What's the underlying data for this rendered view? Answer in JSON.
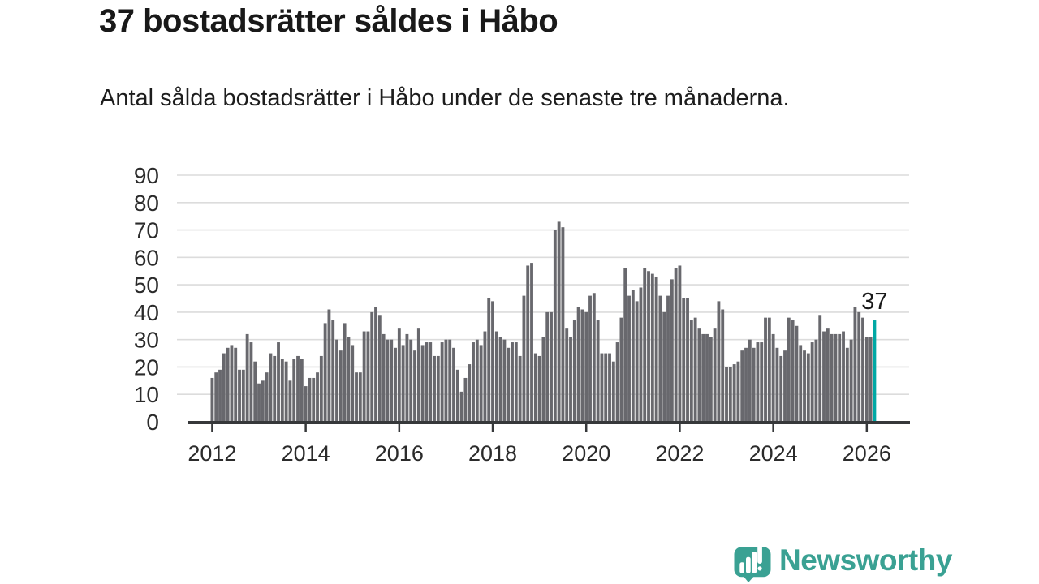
{
  "header": {
    "title": "37 bostadsrätter såldes i Håbo",
    "subtitle": "Antal sålda bostadsrätter i Håbo under de senaste tre månaderna."
  },
  "chart_data": {
    "type": "bar",
    "title": "37 bostadsrätter såldes i Håbo",
    "xlabel": "",
    "ylabel": "",
    "x_monthly_start": "2012-01",
    "x_monthly_end": "2026-03",
    "values": [
      16,
      18,
      19,
      25,
      27,
      28,
      27,
      19,
      19,
      32,
      29,
      22,
      14,
      15,
      18,
      25,
      24,
      29,
      23,
      22,
      15,
      23,
      24,
      23,
      13,
      16,
      16,
      18,
      24,
      36,
      41,
      37,
      30,
      26,
      36,
      31,
      28,
      18,
      18,
      33,
      33,
      40,
      42,
      39,
      32,
      30,
      30,
      27,
      34,
      28,
      32,
      30,
      26,
      34,
      28,
      29,
      29,
      24,
      24,
      29,
      30,
      30,
      27,
      19,
      11,
      16,
      21,
      29,
      30,
      28,
      33,
      45,
      44,
      33,
      31,
      30,
      27,
      29,
      29,
      24,
      46,
      57,
      58,
      25,
      24,
      31,
      40,
      40,
      70,
      73,
      71,
      34,
      31,
      37,
      42,
      41,
      40,
      46,
      47,
      37,
      25,
      25,
      25,
      22,
      29,
      38,
      56,
      46,
      48,
      44,
      49,
      56,
      55,
      54,
      53,
      46,
      40,
      46,
      52,
      56,
      57,
      45,
      45,
      37,
      38,
      34,
      32,
      32,
      31,
      34,
      44,
      41,
      20,
      20,
      21,
      22,
      26,
      27,
      30,
      27,
      29,
      29,
      38,
      38,
      32,
      27,
      24,
      26,
      38,
      37,
      35,
      28,
      26,
      25,
      29,
      30,
      39,
      33,
      34,
      32,
      32,
      32,
      33,
      27,
      30,
      42,
      40,
      38,
      31,
      31,
      37
    ],
    "highlight_last_bar": true,
    "annotation": {
      "text": "37"
    },
    "x_ticks": [
      {
        "label": "2012",
        "month_index": 0
      },
      {
        "label": "2014",
        "month_index": 24
      },
      {
        "label": "2016",
        "month_index": 48
      },
      {
        "label": "2018",
        "month_index": 72
      },
      {
        "label": "2020",
        "month_index": 96
      },
      {
        "label": "2022",
        "month_index": 120
      },
      {
        "label": "2024",
        "month_index": 144
      },
      {
        "label": "2026",
        "month_index": 168
      }
    ],
    "y_ticks": [
      0,
      10,
      20,
      30,
      40,
      50,
      60,
      70,
      80,
      90
    ],
    "ylim": [
      0,
      90
    ],
    "grid": true,
    "legend": false,
    "colors": {
      "bar": "#68686d",
      "highlight": "#00a8a4",
      "gridline": "#dcdcdc",
      "axis_line": "#36383a",
      "tick_label": "#2b2b2b",
      "annotation_text": "#191919"
    }
  },
  "branding": {
    "logo_text": "Newsworthy",
    "logo_icon": "speech-bubble-with-bar-chart-and-exclamation",
    "logo_color": "#3aa193"
  }
}
